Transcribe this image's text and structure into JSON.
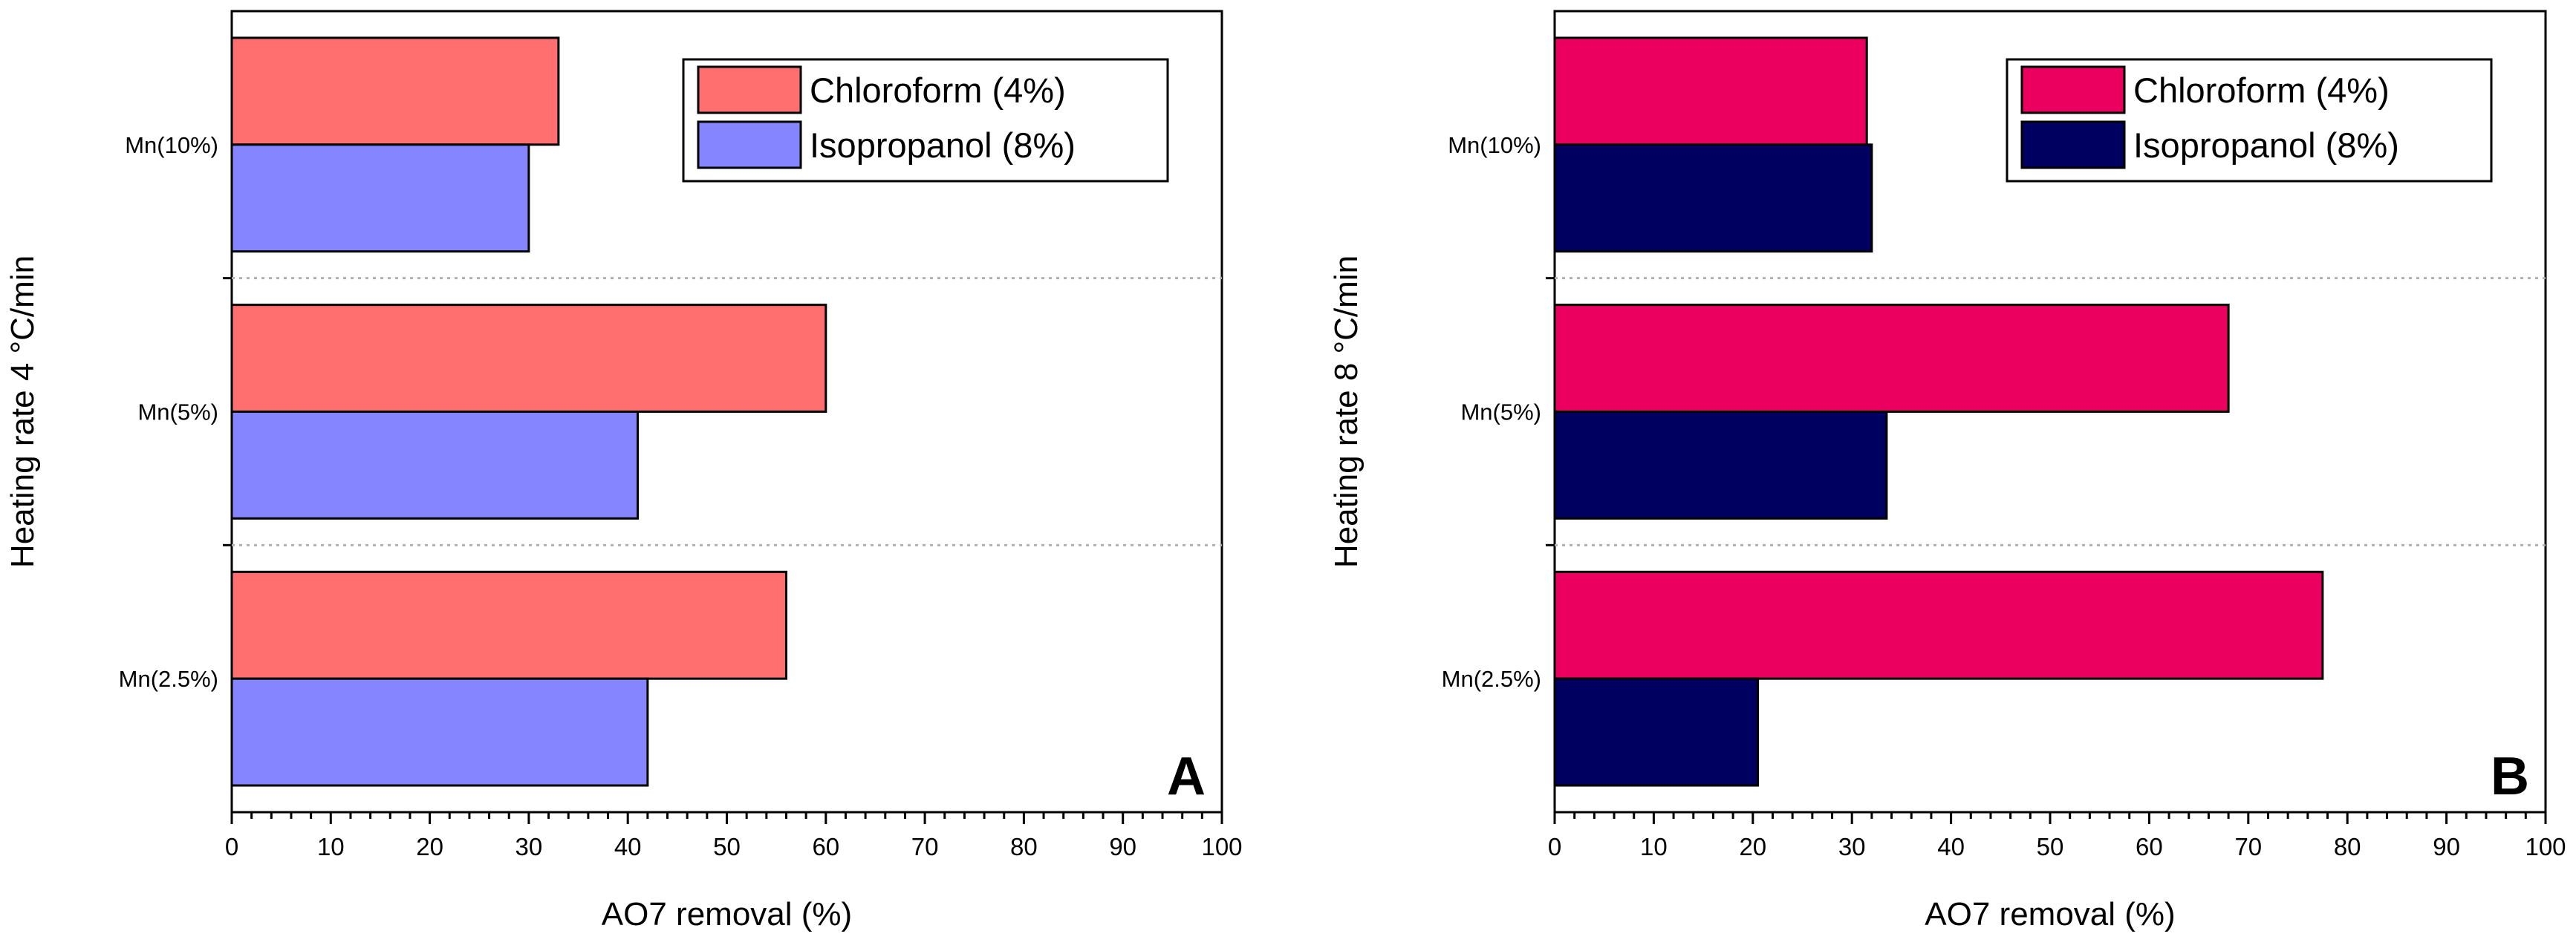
{
  "chart_data": [
    {
      "type": "bar",
      "orientation": "horizontal",
      "panel_label": "A",
      "categories": [
        "Mn(10%)",
        "Mn(5%)",
        "Mn(2.5%)"
      ],
      "series": [
        {
          "name": "Chloroform (4%)",
          "color": "#ff6f6f",
          "values": [
            33,
            60,
            56
          ]
        },
        {
          "name": "Isopropanol (8%)",
          "color": "#8585ff",
          "values": [
            30,
            41,
            42
          ]
        }
      ],
      "xlabel": "AO7 removal (%)",
      "ylabel": "Heating rate 4 °C/min",
      "xlim": [
        0,
        100
      ],
      "xticks": [
        "0",
        "10",
        "20",
        "30",
        "40",
        "50",
        "60",
        "70",
        "80",
        "90",
        "100"
      ],
      "legend": "top-right",
      "grid": "dotted separators between categories"
    },
    {
      "type": "bar",
      "orientation": "horizontal",
      "panel_label": "B",
      "categories": [
        "Mn(10%)",
        "Mn(5%)",
        "Mn(2.5%)"
      ],
      "series": [
        {
          "name": "Chloroform (4%)",
          "color": "#ec005f",
          "values": [
            31.5,
            68,
            77.5
          ]
        },
        {
          "name": "Isopropanol (8%)",
          "color": "#000060",
          "values": [
            32,
            33.5,
            20.5
          ]
        }
      ],
      "xlabel": "AO7 removal (%)",
      "ylabel": "Heating rate 8 °C/min",
      "xlim": [
        0,
        100
      ],
      "xticks": [
        "0",
        "10",
        "20",
        "30",
        "40",
        "50",
        "60",
        "70",
        "80",
        "90",
        "100"
      ],
      "legend": "top-right",
      "grid": "dotted separators between categories"
    }
  ]
}
